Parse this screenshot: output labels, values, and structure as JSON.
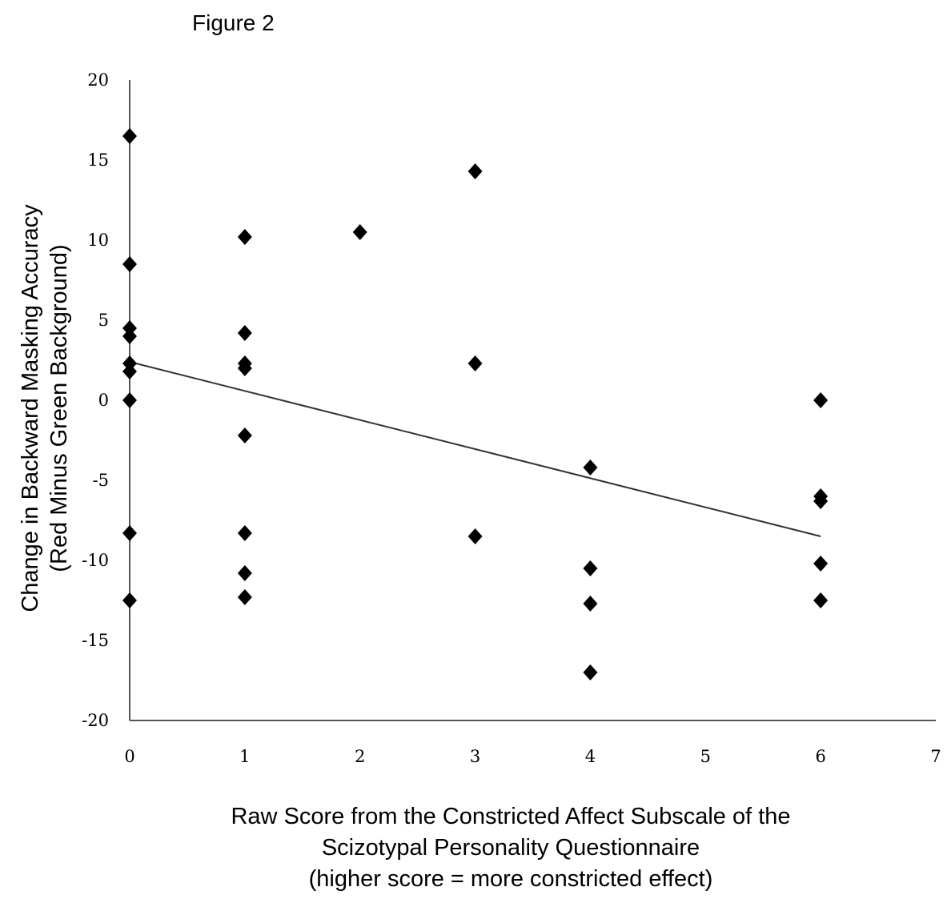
{
  "figure_label": "Figure 2",
  "chart_data": {
    "type": "scatter",
    "title": "",
    "xlabel_lines": [
      "Raw Score from the Constricted Affect Subscale of the",
      "Scizotypal Personality Questionnaire",
      "(higher score = more constricted effect)"
    ],
    "ylabel_lines": [
      "Change in Backward Masking Accuracy",
      "(Red Minus Green Background)"
    ],
    "xlim": [
      0,
      7
    ],
    "ylim": [
      -20,
      20
    ],
    "x_ticks": [
      0,
      1,
      2,
      3,
      4,
      5,
      6,
      7
    ],
    "y_ticks": [
      20,
      15,
      10,
      5,
      0,
      -5,
      -10,
      -15,
      -20
    ],
    "grid": false,
    "legend": "none",
    "marker": "diamond",
    "marker_color": "#000000",
    "points": [
      {
        "x": 0,
        "y": 16.5
      },
      {
        "x": 0,
        "y": 8.5
      },
      {
        "x": 0,
        "y": 4.5
      },
      {
        "x": 0,
        "y": 4.0
      },
      {
        "x": 0,
        "y": 2.3
      },
      {
        "x": 0,
        "y": 1.8
      },
      {
        "x": 0,
        "y": 0
      },
      {
        "x": 0,
        "y": -8.3
      },
      {
        "x": 0,
        "y": -12.5
      },
      {
        "x": 1,
        "y": 10.2
      },
      {
        "x": 1,
        "y": 4.2
      },
      {
        "x": 1,
        "y": 2.3
      },
      {
        "x": 1,
        "y": 2.0
      },
      {
        "x": 1,
        "y": -2.2
      },
      {
        "x": 1,
        "y": -8.3
      },
      {
        "x": 1,
        "y": -10.8
      },
      {
        "x": 1,
        "y": -12.3
      },
      {
        "x": 2,
        "y": 10.5
      },
      {
        "x": 3,
        "y": 14.3
      },
      {
        "x": 3,
        "y": 2.3
      },
      {
        "x": 3,
        "y": -8.5
      },
      {
        "x": 4,
        "y": -4.2
      },
      {
        "x": 4,
        "y": -10.5
      },
      {
        "x": 4,
        "y": -12.7
      },
      {
        "x": 4,
        "y": -17.0
      },
      {
        "x": 6,
        "y": 0
      },
      {
        "x": 6,
        "y": -6.0
      },
      {
        "x": 6,
        "y": -6.3
      },
      {
        "x": 6,
        "y": -10.2
      },
      {
        "x": 6,
        "y": -12.5
      }
    ],
    "trendline": {
      "x": [
        0,
        6
      ],
      "y": [
        2.4,
        -8.5
      ]
    }
  }
}
